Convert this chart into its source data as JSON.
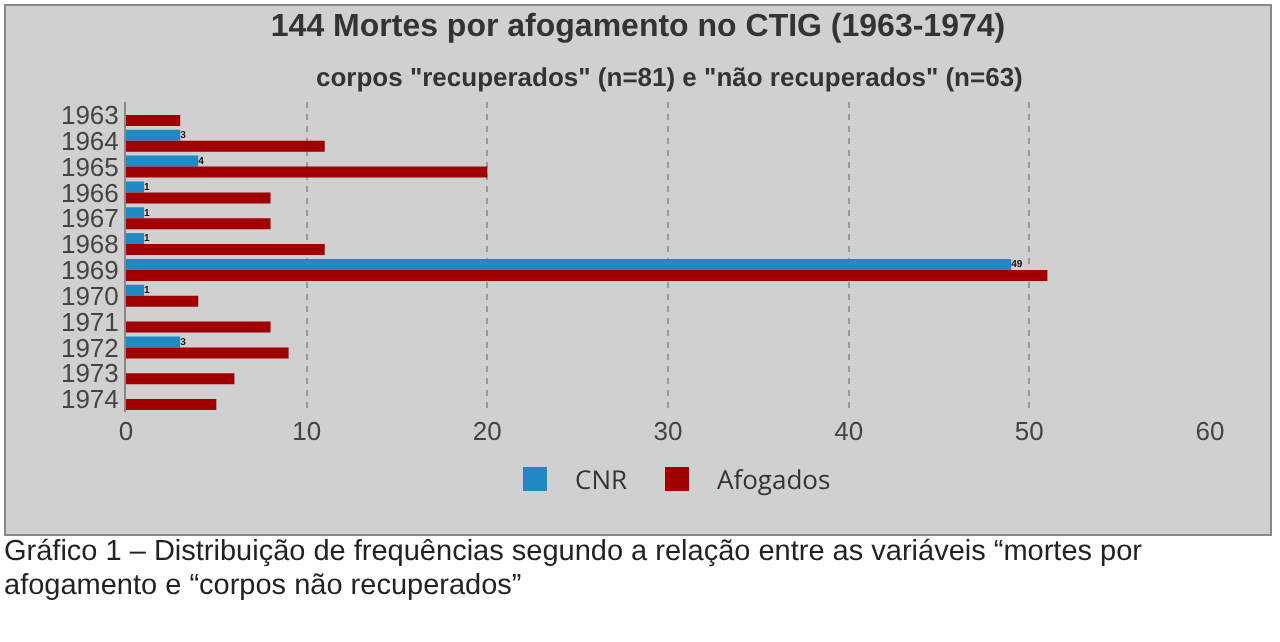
{
  "chart_data": {
    "type": "bar",
    "orientation": "horizontal",
    "title": "144 Mortes por afogamento no CTIG (1963-1974)",
    "subtitle": "corpos \"recuperados\" (n=81) e \"não recuperados\" (n=63)",
    "categories": [
      "1963",
      "1964",
      "1965",
      "1966",
      "1967",
      "1968",
      "1969",
      "1970",
      "1971",
      "1972",
      "1973",
      "1974"
    ],
    "series": [
      {
        "name": "CNR",
        "color": "#1f8ac6",
        "values": [
          0,
          3,
          4,
          1,
          1,
          1,
          49,
          1,
          0,
          3,
          0,
          0
        ],
        "value_labels": [
          null,
          "3",
          "4",
          "1",
          "1",
          "1",
          "49",
          "1",
          null,
          "3",
          null,
          null
        ]
      },
      {
        "name": "Afogados",
        "color": "#a00000",
        "values": [
          3,
          11,
          20,
          8,
          8,
          11,
          51,
          4,
          8,
          9,
          6,
          5
        ]
      }
    ],
    "xlim": [
      0,
      60
    ],
    "xticks": [
      0,
      10,
      20,
      30,
      40,
      50,
      60
    ],
    "grid": "x",
    "legend": "bottom",
    "annotations": [
      "Gráfico 1 – Distribuição de frequências segundo a relação entre as variáveis “mortes por afogamento e “corpos não recuperados”"
    ]
  }
}
